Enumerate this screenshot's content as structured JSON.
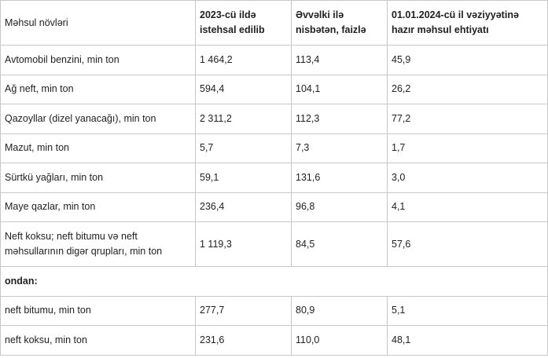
{
  "table": {
    "header": [
      "Məhsul növləri",
      "2023-cü ildə istehsal edilib",
      "Əvvəlki ilə nisbətən, faizlə",
      "01.01.2024-cü il vəziyyətinə hazır məhsul ehtiyatı"
    ],
    "rows": [
      [
        "Avtomobil benzini, min ton",
        "1 464,2",
        "113,4",
        "45,9"
      ],
      [
        "Ağ neft, min ton",
        "594,4",
        "104,1",
        "26,2"
      ],
      [
        "Qazoyllar (dizel yanacağı), min ton",
        "2 311,2",
        "112,3",
        "77,2"
      ],
      [
        "Mazut, min ton",
        "5,7",
        "7,3",
        "1,7"
      ],
      [
        "Sürtkü yağları, min ton",
        "59,1",
        "131,6",
        "3,0"
      ],
      [
        "Maye qazlar, min ton",
        "236,4",
        "96,8",
        "4,1"
      ],
      [
        "Neft koksu; neft bitumu və neft məhsullarının digər qrupları, min ton",
        "1 119,3",
        "84,5",
        "57,6"
      ],
      [
        "ondan:"
      ],
      [
        "neft bitumu, min ton",
        "277,7",
        "80,9",
        "5,1"
      ],
      [
        "neft koksu, min ton",
        "231,6",
        "110,0",
        "48,1"
      ]
    ]
  }
}
